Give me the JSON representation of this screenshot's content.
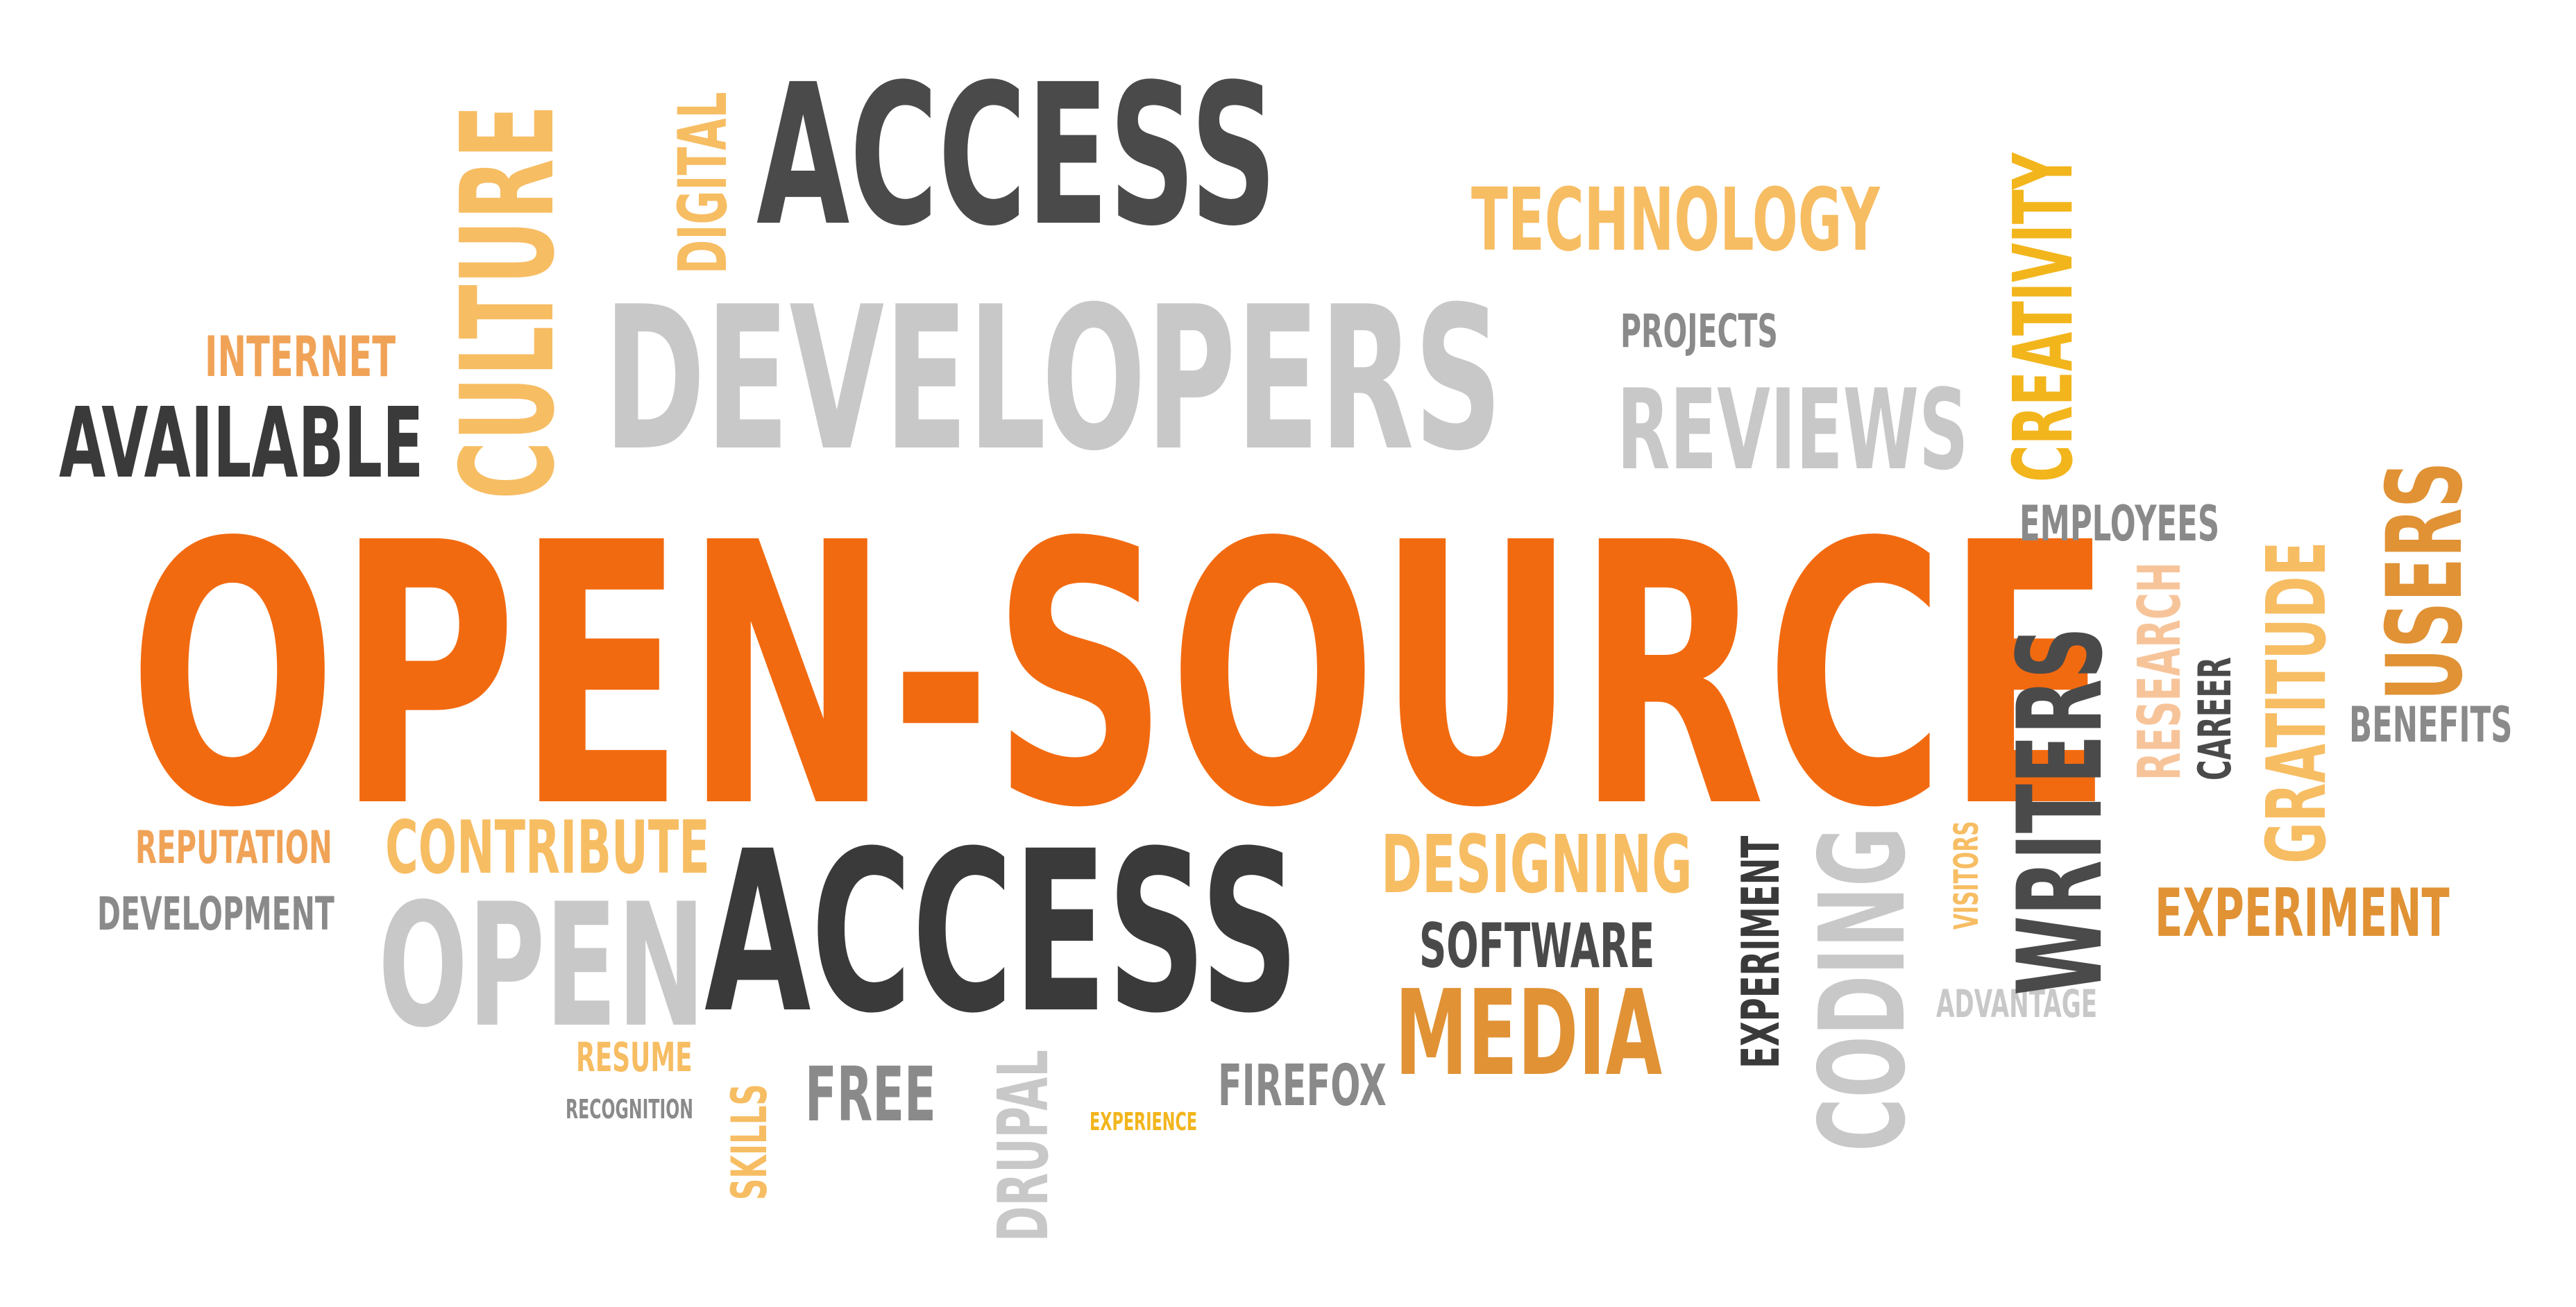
{
  "colors": {
    "orange": "#f26a10",
    "dark_gray": "#4a4a4a",
    "charcoal": "#3a3a3a",
    "mid_gray": "#8a8a8a",
    "light_gray": "#c8c8c8",
    "pale_orange": "#f7bd63",
    "gold": "#f2b51c",
    "amber": "#e09235",
    "peach": "#f0a357",
    "light_peach": "#f7c49a"
  },
  "words": {
    "open_source": "OPEN-SOURCE",
    "access_top": "ACCESS",
    "developers": "DEVELOPERS",
    "technology": "TECHNOLOGY",
    "projects": "PROJECTS",
    "reviews": "REVIEWS",
    "internet": "INTERNET",
    "available": "AVAILABLE",
    "culture": "CULTURE",
    "digital": "DIGITAL",
    "creativity": "CREATIVITY",
    "employees": "EMPLOYEES",
    "users": "USERS",
    "gratitude": "GRATITUDE",
    "research": "RESEARCH",
    "career": "CAREER",
    "benefits": "BENEFITS",
    "writers": "WRITERS",
    "visitors": "VISITORS",
    "experiment_right": "EXPERIMENT",
    "coding": "CODING",
    "experiment_vertical": "EXPERIMENT",
    "advantage": "ADVANTAGE",
    "reputation": "REPUTATION",
    "contribute": "CONTRIBUTE",
    "development": "DEVELOPMENT",
    "open": "OPEN",
    "access_bottom": "ACCESS",
    "designing": "DESIGNING",
    "software": "SOFTWARE",
    "media": "MEDIA",
    "resume": "RESUME",
    "recognition": "RECOGNITION",
    "skills": "SKILLS",
    "free": "FREE",
    "drupal": "DRUPAL",
    "firefox": "FIREFOX",
    "experience": "EXPERIENCE"
  }
}
